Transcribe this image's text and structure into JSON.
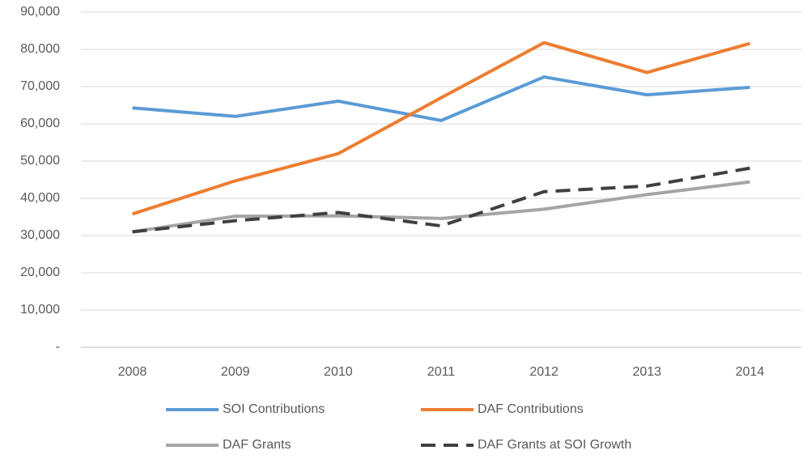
{
  "chart_data": {
    "type": "line",
    "categories": [
      "2008",
      "2009",
      "2010",
      "2011",
      "2012",
      "2013",
      "2014"
    ],
    "series": [
      {
        "name": "SOI Contributions",
        "color": "#5b9bd5",
        "values": [
          64300,
          62000,
          66100,
          60900,
          72600,
          67800,
          69800
        ]
      },
      {
        "name": "DAF Contributions",
        "color": "#ed7d31",
        "values": [
          35800,
          44700,
          52000,
          67000,
          81800,
          73800,
          81600
        ]
      },
      {
        "name": "DAF Grants",
        "color": "#a5a5a5",
        "values": [
          31000,
          35200,
          35300,
          34600,
          37100,
          41000,
          44400
        ]
      },
      {
        "name": "DAF Grants at SOI Growth",
        "color": "#404040",
        "dashed": true,
        "values": [
          31000,
          34000,
          36200,
          32600,
          41800,
          43300,
          48100
        ]
      }
    ],
    "ylim": [
      0,
      90000
    ],
    "yticks": [
      {
        "value": 0,
        "label": "-"
      },
      {
        "value": 10000,
        "label": "10,000"
      },
      {
        "value": 20000,
        "label": "20,000"
      },
      {
        "value": 30000,
        "label": "30,000"
      },
      {
        "value": 40000,
        "label": "40,000"
      },
      {
        "value": 50000,
        "label": "50,000"
      },
      {
        "value": 60000,
        "label": "60,000"
      },
      {
        "value": 70000,
        "label": "70,000"
      },
      {
        "value": 80000,
        "label": "80,000"
      },
      {
        "value": 90000,
        "label": "90,000"
      }
    ],
    "grid": true,
    "legend": "bottom"
  }
}
